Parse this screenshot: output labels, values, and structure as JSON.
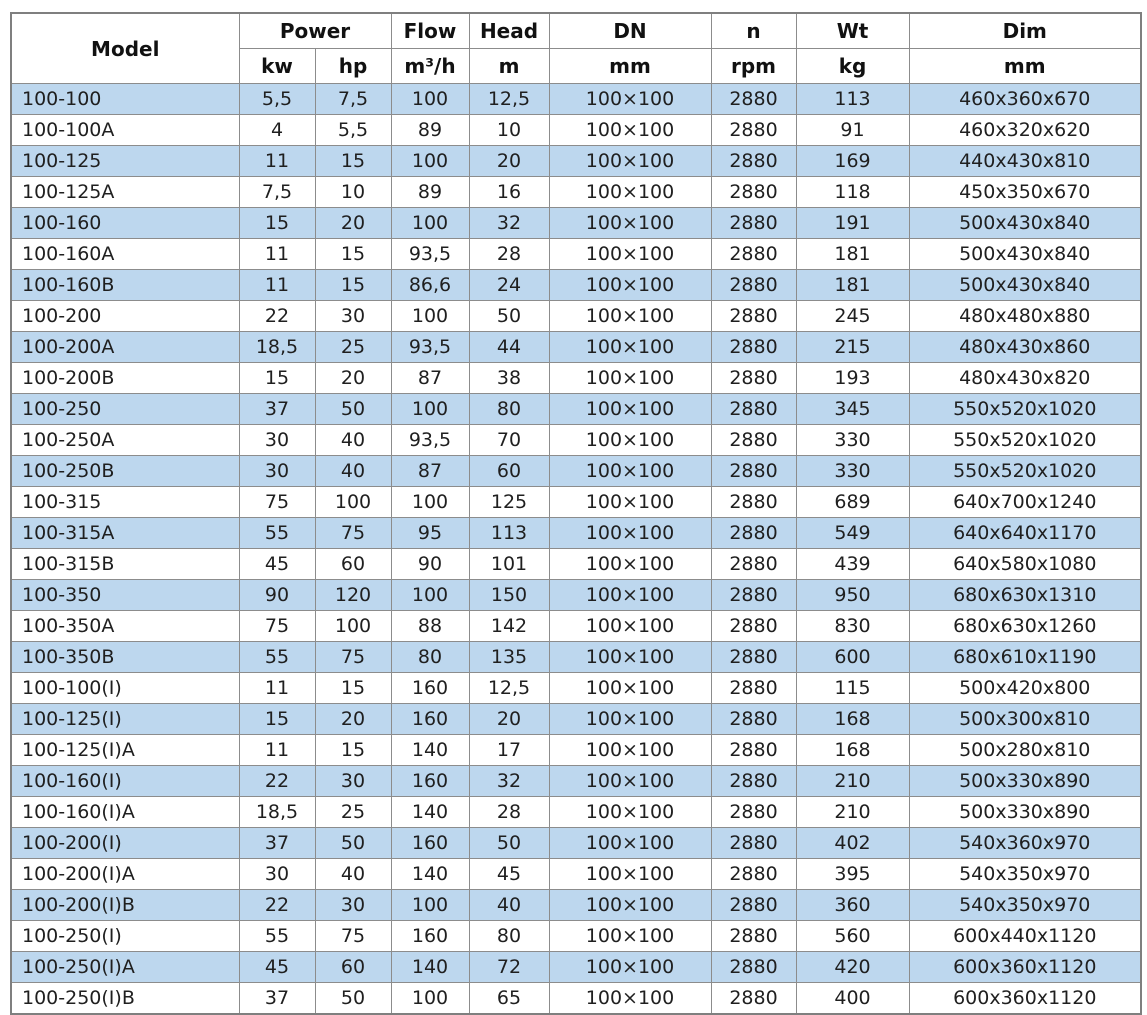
{
  "colors": {
    "row_alt": "#BDD7EE",
    "row_base": "#FFFFFF",
    "grid": "#8C8C8C",
    "outer_border": "#7F7F7F",
    "text": "#1F1F1F",
    "header_text": "#111111"
  },
  "table": {
    "header": {
      "model": "Model",
      "power_group": "Power",
      "flow": "Flow",
      "head": "Head",
      "dn": "DN",
      "n": "n",
      "wt": "Wt",
      "dim": "Dim",
      "unit_kw": "kw",
      "unit_hp": "hp",
      "unit_flow": "m³/h",
      "unit_head": "m",
      "unit_dn": "mm",
      "unit_n": "rpm",
      "unit_wt": "kg",
      "unit_dim": "mm"
    },
    "column_keys": [
      "model",
      "power-kw",
      "power-hp",
      "flow",
      "head",
      "dn",
      "n",
      "wt",
      "dim"
    ],
    "rows": [
      [
        "100-100",
        "5,5",
        "7,5",
        "100",
        "12,5",
        "100×100",
        "2880",
        "113",
        "460x360x670"
      ],
      [
        "100-100A",
        "4",
        "5,5",
        "89",
        "10",
        "100×100",
        "2880",
        "91",
        "460x320x620"
      ],
      [
        "100-125",
        "11",
        "15",
        "100",
        "20",
        "100×100",
        "2880",
        "169",
        "440x430x810"
      ],
      [
        "100-125A",
        "7,5",
        "10",
        "89",
        "16",
        "100×100",
        "2880",
        "118",
        "450x350x670"
      ],
      [
        "100-160",
        "15",
        "20",
        "100",
        "32",
        "100×100",
        "2880",
        "191",
        "500x430x840"
      ],
      [
        "100-160A",
        "11",
        "15",
        "93,5",
        "28",
        "100×100",
        "2880",
        "181",
        "500x430x840"
      ],
      [
        "100-160B",
        "11",
        "15",
        "86,6",
        "24",
        "100×100",
        "2880",
        "181",
        "500x430x840"
      ],
      [
        "100-200",
        "22",
        "30",
        "100",
        "50",
        "100×100",
        "2880",
        "245",
        "480x480x880"
      ],
      [
        "100-200A",
        "18,5",
        "25",
        "93,5",
        "44",
        "100×100",
        "2880",
        "215",
        "480x430x860"
      ],
      [
        "100-200B",
        "15",
        "20",
        "87",
        "38",
        "100×100",
        "2880",
        "193",
        "480x430x820"
      ],
      [
        "100-250",
        "37",
        "50",
        "100",
        "80",
        "100×100",
        "2880",
        "345",
        "550x520x1020"
      ],
      [
        "100-250A",
        "30",
        "40",
        "93,5",
        "70",
        "100×100",
        "2880",
        "330",
        "550x520x1020"
      ],
      [
        "100-250B",
        "30",
        "40",
        "87",
        "60",
        "100×100",
        "2880",
        "330",
        "550x520x1020"
      ],
      [
        "100-315",
        "75",
        "100",
        "100",
        "125",
        "100×100",
        "2880",
        "689",
        "640x700x1240"
      ],
      [
        "100-315A",
        "55",
        "75",
        "95",
        "113",
        "100×100",
        "2880",
        "549",
        "640x640x1170"
      ],
      [
        "100-315B",
        "45",
        "60",
        "90",
        "101",
        "100×100",
        "2880",
        "439",
        "640x580x1080"
      ],
      [
        "100-350",
        "90",
        "120",
        "100",
        "150",
        "100×100",
        "2880",
        "950",
        "680x630x1310"
      ],
      [
        "100-350A",
        "75",
        "100",
        "88",
        "142",
        "100×100",
        "2880",
        "830",
        "680x630x1260"
      ],
      [
        "100-350B",
        "55",
        "75",
        "80",
        "135",
        "100×100",
        "2880",
        "600",
        "680x610x1190"
      ],
      [
        "100-100(I)",
        "11",
        "15",
        "160",
        "12,5",
        "100×100",
        "2880",
        "115",
        "500x420x800"
      ],
      [
        "100-125(I)",
        "15",
        "20",
        "160",
        "20",
        "100×100",
        "2880",
        "168",
        "500x300x810"
      ],
      [
        "100-125(I)A",
        "11",
        "15",
        "140",
        "17",
        "100×100",
        "2880",
        "168",
        "500x280x810"
      ],
      [
        "100-160(I)",
        "22",
        "30",
        "160",
        "32",
        "100×100",
        "2880",
        "210",
        "500x330x890"
      ],
      [
        "100-160(I)A",
        "18,5",
        "25",
        "140",
        "28",
        "100×100",
        "2880",
        "210",
        "500x330x890"
      ],
      [
        "100-200(I)",
        "37",
        "50",
        "160",
        "50",
        "100×100",
        "2880",
        "402",
        "540x360x970"
      ],
      [
        "100-200(I)A",
        "30",
        "40",
        "140",
        "45",
        "100×100",
        "2880",
        "395",
        "540x350x970"
      ],
      [
        "100-200(I)B",
        "22",
        "30",
        "100",
        "40",
        "100×100",
        "2880",
        "360",
        "540x350x970"
      ],
      [
        "100-250(I)",
        "55",
        "75",
        "160",
        "80",
        "100×100",
        "2880",
        "560",
        "600x440x1120"
      ],
      [
        "100-250(I)A",
        "45",
        "60",
        "140",
        "72",
        "100×100",
        "2880",
        "420",
        "600x360x1120"
      ],
      [
        "100-250(I)B",
        "37",
        "50",
        "100",
        "65",
        "100×100",
        "2880",
        "400",
        "600x360x1120"
      ]
    ]
  }
}
